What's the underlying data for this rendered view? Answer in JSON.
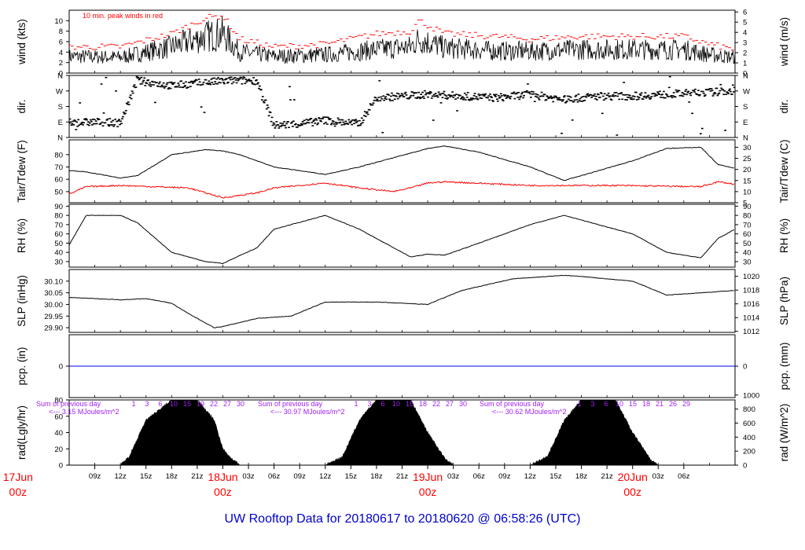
{
  "title": "UW Rooftop Data for 20180617  to  20180620 @ 06:58:26  (UTC)",
  "x_axis": {
    "hour_labels": [
      "09z",
      "12z",
      "15z",
      "18z",
      "21z",
      "00z",
      "03z",
      "06z",
      "09z",
      "12z",
      "15z",
      "18z",
      "21z",
      "00z",
      "03z",
      "06z",
      "09z",
      "12z",
      "15z",
      "18z",
      "21z",
      "00z",
      "03z",
      "06z"
    ],
    "date_labels": [
      {
        "date": "17Jun",
        "hour": "00z"
      },
      {
        "date": "18Jun",
        "hour": "00z"
      },
      {
        "date": "19Jun",
        "hour": "00z"
      },
      {
        "date": "20Jun",
        "hour": "00z"
      }
    ]
  },
  "colors": {
    "peak": "#ff0000",
    "dewpoint": "#ff0000",
    "precip": "#0000ff",
    "radiation_text": "#a020f0",
    "title": "#0000cc",
    "date": "#ff0000"
  },
  "chart_data": [
    {
      "type": "line",
      "panel": "wind",
      "ylabel_left": "wind (kts)",
      "ylabel_right": "wind (m/s)",
      "annotation": "10 min. peak winds in red",
      "left_ticks": [
        "0",
        "2",
        "4",
        "6",
        "8",
        "10"
      ],
      "right_ticks": [
        "0",
        "1",
        "2",
        "3",
        "4",
        "5",
        "6"
      ],
      "ylim": [
        0,
        12
      ],
      "series": [
        {
          "x_hours": [
            6,
            12,
            18,
            22,
            24,
            26,
            30,
            36,
            42,
            46,
            47,
            50,
            56,
            60,
            66,
            72,
            78,
            81,
            84
          ],
          "values": [
            3.2,
            3.0,
            5.0,
            7.0,
            7.5,
            4.0,
            3.2,
            3.5,
            4.5,
            5.0,
            6.5,
            4.8,
            4.2,
            4.2,
            4.5,
            4.5,
            4.5,
            3.5,
            3.0
          ]
        },
        {
          "x_hours": [
            6,
            12,
            18,
            22,
            24,
            26,
            30,
            36,
            42,
            46,
            47,
            50,
            56,
            60,
            66,
            72,
            78,
            81,
            84
          ],
          "values": [
            5.0,
            5.0,
            7.5,
            10.5,
            11.0,
            6.5,
            5.0,
            5.5,
            7.5,
            8.0,
            10.0,
            7.5,
            7.0,
            6.5,
            7.0,
            7.0,
            7.0,
            5.5,
            4.5
          ]
        }
      ]
    },
    {
      "type": "scatter",
      "panel": "direction",
      "ylabel_left": "dir.",
      "ylabel_right": "dir.",
      "left_ticks": [
        "N",
        "E",
        "S",
        "W",
        "N"
      ],
      "right_ticks": [
        "N",
        "E",
        "S",
        "W",
        "N"
      ],
      "ylim": [
        0,
        360
      ],
      "series": [
        {
          "x_hours": [
            6,
            9,
            12,
            14,
            18,
            22,
            25,
            28,
            30,
            33,
            36,
            40,
            42,
            45,
            48,
            52,
            56,
            60,
            64,
            68,
            72,
            76,
            80,
            84
          ],
          "values": [
            85,
            90,
            85,
            330,
            300,
            320,
            330,
            330,
            70,
            80,
            100,
            80,
            230,
            240,
            250,
            240,
            230,
            250,
            220,
            240,
            240,
            250,
            260,
            270
          ]
        }
      ]
    },
    {
      "type": "line",
      "panel": "temperature",
      "ylabel_left": "Tair/Tdew (F)",
      "ylabel_right": "Tair/Tdew (C)",
      "left_ticks": [
        "50",
        "60",
        "70",
        "80"
      ],
      "right_ticks": [
        "5",
        "10",
        "15",
        "20",
        "25",
        "30"
      ],
      "ylim": [
        41,
        92
      ],
      "series": [
        {
          "x_hours": [
            6,
            8,
            12,
            14,
            18,
            22,
            24,
            26,
            30,
            36,
            40,
            48,
            50,
            54,
            60,
            64,
            72,
            76,
            80,
            82,
            84
          ],
          "values": [
            67,
            66,
            61,
            63,
            80,
            84,
            83,
            80,
            70,
            64,
            70,
            85,
            87,
            82,
            70,
            59,
            75,
            85,
            86,
            72,
            69
          ]
        },
        {
          "x_hours": [
            6,
            8,
            12,
            20,
            24,
            28,
            30,
            36,
            40,
            44,
            46,
            48,
            50,
            60,
            70,
            80,
            82,
            84
          ],
          "values": [
            48,
            54,
            55,
            53,
            45,
            49,
            53,
            57,
            53,
            50,
            53,
            57,
            58,
            55,
            55,
            54,
            58,
            56
          ]
        }
      ]
    },
    {
      "type": "line",
      "panel": "humidity",
      "ylabel_left": "RH (%)",
      "ylabel_right": "RH (%)",
      "left_ticks": [
        "30",
        "40",
        "50",
        "60",
        "70",
        "80",
        "90"
      ],
      "right_ticks": [
        "30",
        "40",
        "50",
        "60",
        "70",
        "80",
        "90"
      ],
      "ylim": [
        24,
        92
      ],
      "series": [
        {
          "x_hours": [
            6,
            8,
            12,
            14,
            18,
            22,
            24,
            28,
            30,
            36,
            40,
            46,
            48,
            50,
            54,
            60,
            64,
            72,
            76,
            80,
            82,
            84
          ],
          "values": [
            48,
            80,
            80,
            72,
            40,
            30,
            28,
            45,
            65,
            80,
            65,
            35,
            38,
            37,
            50,
            70,
            80,
            60,
            40,
            34,
            55,
            65
          ]
        }
      ]
    },
    {
      "type": "line",
      "panel": "pressure",
      "ylabel_left": "SLP (inHg)",
      "ylabel_right": "SLP (hPa)",
      "left_ticks": [
        "29.90",
        "29.95",
        "30.00",
        "30.05",
        "30.10"
      ],
      "right_ticks": [
        "1012",
        "1014",
        "1016",
        "1018",
        "1020"
      ],
      "ylim": [
        29.88,
        30.15
      ],
      "series": [
        {
          "x_hours": [
            6,
            12,
            15,
            18,
            20,
            23,
            24,
            28,
            32,
            36,
            42,
            48,
            52,
            58,
            64,
            66,
            72,
            76,
            78,
            84
          ],
          "values": [
            30.03,
            30.02,
            30.025,
            30.005,
            29.96,
            29.9,
            29.905,
            29.94,
            29.95,
            30.01,
            30.01,
            30.0,
            30.06,
            30.11,
            30.125,
            30.12,
            30.1,
            30.04,
            30.045,
            30.06
          ]
        }
      ]
    },
    {
      "type": "line",
      "panel": "precipitation",
      "ylabel_left": "pcp. (in)",
      "ylabel_right": "pcp. (mm)",
      "left_ticks": [
        "0"
      ],
      "right_ticks": [
        "0"
      ],
      "ylim": [
        -1,
        1
      ],
      "series": [
        {
          "x_hours": [
            6,
            84
          ],
          "values": [
            0,
            0
          ]
        }
      ]
    },
    {
      "type": "area",
      "panel": "radiation",
      "ylabel_left": "rad(Lgly/hr)",
      "ylabel_right": "rad (W/m^2)",
      "left_ticks": [
        "0",
        "20",
        "40",
        "60",
        "80"
      ],
      "right_ticks": [
        "0",
        "200",
        "400",
        "600",
        "800",
        "1000"
      ],
      "ylim": [
        0,
        80
      ],
      "sum_labels": [
        {
          "line1": "Sum of previous day",
          "line2": "<--- 3.15 MJoules/m^2"
        },
        {
          "line1": "Sum of previous day",
          "line2": "<--- 30.97 MJoules/m^2"
        },
        {
          "line1": "Sum of previous day",
          "line2": "<--- 30.62 MJoules/m^2"
        }
      ],
      "day_ticks": [
        [
          "1",
          "3",
          "6",
          "10",
          "15",
          "19",
          "22",
          "27",
          "30"
        ],
        [
          "1",
          "3",
          "6",
          "10",
          "15",
          "18",
          "22",
          "27",
          "30"
        ],
        [
          "1",
          "3",
          "6",
          "10",
          "15",
          "18",
          "21",
          "26",
          "29"
        ]
      ],
      "series": [
        {
          "x_hours": [
            12,
            13,
            15,
            18,
            20,
            21,
            23,
            24,
            25,
            26,
            36,
            38,
            40,
            42,
            45,
            46,
            48,
            50,
            51,
            60,
            62,
            64,
            66,
            69,
            70,
            72,
            74,
            75
          ],
          "values": [
            0,
            10,
            55,
            80,
            85,
            80,
            55,
            20,
            8,
            0,
            0,
            10,
            55,
            80,
            84,
            80,
            40,
            8,
            0,
            0,
            10,
            55,
            80,
            84,
            80,
            40,
            8,
            0
          ]
        }
      ]
    }
  ]
}
